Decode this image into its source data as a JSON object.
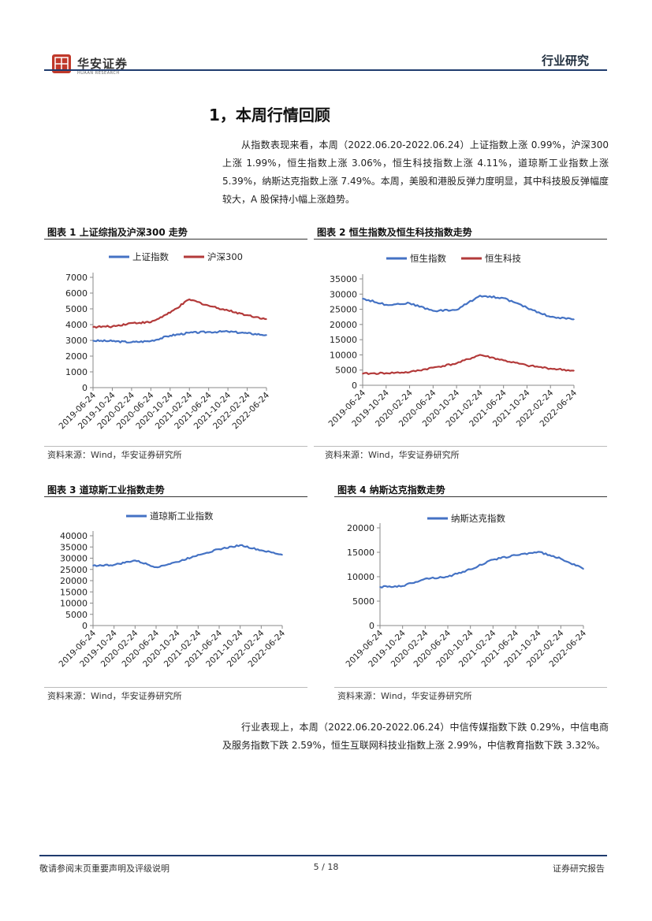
{
  "header": {
    "brand": "华安证券",
    "brand_sub": "HUAAN RESEARCH",
    "section_label": "行业研究"
  },
  "section_title": "1，本周行情回顾",
  "paragraph1": "从指数表现来看，本周（2022.06.20-2022.06.24）上证指数上涨 0.99%，沪深300 上涨 1.99%，恒生指数上涨 3.06%，恒生科技指数上涨 4.11%，道琼斯工业指数上涨 5.39%，纳斯达克指数上涨 7.49%。本周，美股和港股反弹力度明显，其中科技股反弹幅度较大，A 股保持小幅上涨趋势。",
  "paragraph2": "行业表现上，本周（2022.06.20-2022.06.24）中信传媒指数下跌 0.29%，中信电商及服务指数下跌 2.59%，恒生互联网科技业指数上涨 2.99%，中信教育指数下跌 3.32%。",
  "figures": [
    {
      "title": "图表 1 上证综指及沪深300 走势",
      "source": "资料来源：Wind，华安证券研究所"
    },
    {
      "title": "图表 2 恒生指数及恒生科技指数走势",
      "source": "资料来源：Wind，华安证券研究所"
    },
    {
      "title": "图表 3 道琼斯工业指数走势",
      "source": "资料来源：Wind，华安证券研究所"
    },
    {
      "title": "图表 4 纳斯达克指数走势",
      "source": "资料来源：Wind，华安证券研究所"
    }
  ],
  "footer": {
    "left": "敬请参阅末页重要声明及评级说明",
    "page": "5 / 18",
    "right": "证券研究报告"
  },
  "colors": {
    "blue": "#4472c4",
    "red": "#b33a3a",
    "rule": "#1f3b6e",
    "brand_red": "#c0392b"
  },
  "chart_data": [
    {
      "type": "line",
      "categories": [
        "2019-06-24",
        "2019-10-24",
        "2020-02-24",
        "2020-06-24",
        "2020-10-24",
        "2021-02-24",
        "2021-06-24",
        "2021-10-24",
        "2022-02-24",
        "2022-06-24"
      ],
      "ylim": [
        0,
        7000
      ],
      "yticks": [
        0,
        1000,
        2000,
        3000,
        4000,
        5000,
        6000,
        7000
      ],
      "series": [
        {
          "name": "上证指数",
          "color": "#4472c4",
          "values": [
            2980,
            2950,
            2880,
            2960,
            3300,
            3480,
            3530,
            3560,
            3450,
            3340
          ]
        },
        {
          "name": "沪深300",
          "color": "#b33a3a",
          "values": [
            3850,
            3880,
            4100,
            4150,
            4750,
            5600,
            5200,
            4900,
            4600,
            4350
          ]
        }
      ]
    },
    {
      "type": "line",
      "categories": [
        "2019-06-24",
        "2019-10-24",
        "2020-02-24",
        "2020-06-24",
        "2020-10-24",
        "2021-02-24",
        "2021-06-24",
        "2021-10-24",
        "2022-02-24",
        "2022-06-24"
      ],
      "ylim": [
        0,
        35000
      ],
      "yticks": [
        0,
        5000,
        10000,
        15000,
        20000,
        25000,
        30000,
        35000
      ],
      "series": [
        {
          "name": "恒生指数",
          "color": "#4472c4",
          "values": [
            28500,
            26500,
            27000,
            24500,
            24800,
            29500,
            28700,
            25500,
            22500,
            21700
          ]
        },
        {
          "name": "恒生科技",
          "color": "#b33a3a",
          "values": [
            3800,
            4000,
            4300,
            5800,
            7200,
            10000,
            8200,
            6500,
            5500,
            4800
          ]
        }
      ]
    },
    {
      "type": "line",
      "categories": [
        "2019-06-24",
        "2019-10-24",
        "2020-02-24",
        "2020-06-24",
        "2020-10-24",
        "2021-02-24",
        "2021-06-24",
        "2021-10-24",
        "2022-02-24",
        "2022-06-24"
      ],
      "ylim": [
        0,
        40000
      ],
      "yticks": [
        0,
        5000,
        10000,
        15000,
        20000,
        25000,
        30000,
        35000,
        40000
      ],
      "series": [
        {
          "name": "道琼斯工业指数",
          "color": "#4472c4",
          "values": [
            26700,
            27000,
            29000,
            26000,
            28300,
            31500,
            34000,
            35800,
            33500,
            31500
          ]
        }
      ]
    },
    {
      "type": "line",
      "categories": [
        "2019-06-24",
        "2019-10-24",
        "2020-02-24",
        "2020-06-24",
        "2020-10-24",
        "2021-02-24",
        "2021-06-24",
        "2021-10-24",
        "2022-02-24",
        "2022-06-24"
      ],
      "ylim": [
        0,
        20000
      ],
      "yticks": [
        0,
        5000,
        10000,
        15000,
        20000
      ],
      "series": [
        {
          "name": "纳斯达克指数",
          "color": "#4472c4",
          "values": [
            7900,
            8100,
            9600,
            10000,
            11500,
            13500,
            14400,
            15100,
            13700,
            11600
          ]
        }
      ]
    }
  ]
}
